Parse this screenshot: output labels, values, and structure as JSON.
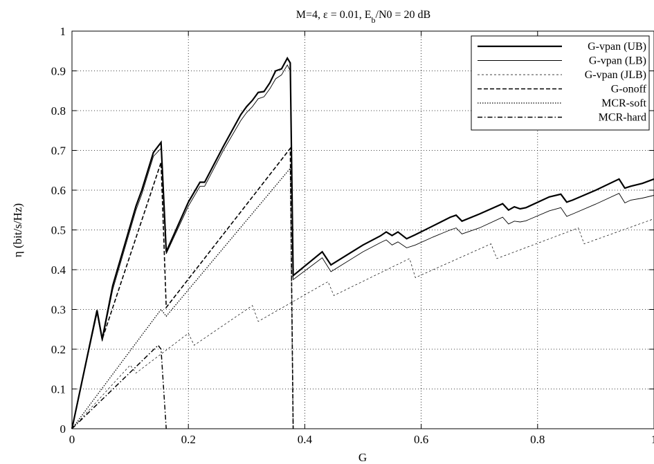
{
  "chart_data": {
    "type": "line",
    "title": "M=4, ε = 0.01, E",
    "title_sub": "b",
    "title_rest": "/N0 = 20 dB",
    "xlabel": "G",
    "ylabel": "η (bit/s/Hz)",
    "xlim": [
      0,
      1
    ],
    "ylim": [
      0,
      1
    ],
    "xticks": [
      0,
      0.2,
      0.4,
      0.6,
      0.8,
      1
    ],
    "xtick_labels": [
      "0",
      "0.2",
      "0.4",
      "0.6",
      "0.8",
      "1"
    ],
    "yticks": [
      0,
      0.1,
      0.2,
      0.3,
      0.4,
      0.5,
      0.6,
      0.7,
      0.8,
      0.9,
      1
    ],
    "ytick_labels": [
      "0",
      "0.1",
      "0.2",
      "0.3",
      "0.4",
      "0.5",
      "0.6",
      "0.7",
      "0.8",
      "0.9",
      "1"
    ],
    "grid": true,
    "legend_position": "top-right",
    "series": [
      {
        "name": "G-vpan (UB)",
        "style": "solid-thick",
        "x": [
          0,
          0.043,
          0.052,
          0.07,
          0.09,
          0.11,
          0.12,
          0.14,
          0.153,
          0.162,
          0.2,
          0.22,
          0.228,
          0.26,
          0.29,
          0.3,
          0.31,
          0.32,
          0.33,
          0.34,
          0.35,
          0.36,
          0.37,
          0.375,
          0.38,
          0.43,
          0.445,
          0.5,
          0.53,
          0.54,
          0.55,
          0.56,
          0.575,
          0.59,
          0.62,
          0.65,
          0.66,
          0.67,
          0.7,
          0.74,
          0.75,
          0.76,
          0.77,
          0.78,
          0.82,
          0.84,
          0.85,
          0.86,
          0.9,
          0.94,
          0.95,
          0.96,
          0.98,
          1.0
        ],
        "y": [
          0,
          0.298,
          0.225,
          0.36,
          0.46,
          0.56,
          0.6,
          0.695,
          0.72,
          0.445,
          0.57,
          0.62,
          0.62,
          0.71,
          0.79,
          0.81,
          0.826,
          0.846,
          0.848,
          0.87,
          0.9,
          0.905,
          0.932,
          0.92,
          0.385,
          0.445,
          0.412,
          0.462,
          0.485,
          0.495,
          0.486,
          0.495,
          0.478,
          0.488,
          0.51,
          0.532,
          0.537,
          0.522,
          0.54,
          0.566,
          0.55,
          0.558,
          0.553,
          0.556,
          0.583,
          0.59,
          0.57,
          0.575,
          0.6,
          0.628,
          0.605,
          0.61,
          0.617,
          0.628
        ]
      },
      {
        "name": "G-vpan (LB)",
        "style": "solid-thin",
        "x": [
          0,
          0.043,
          0.052,
          0.07,
          0.09,
          0.11,
          0.12,
          0.14,
          0.153,
          0.162,
          0.2,
          0.22,
          0.228,
          0.26,
          0.29,
          0.3,
          0.31,
          0.32,
          0.33,
          0.34,
          0.35,
          0.36,
          0.37,
          0.375,
          0.38,
          0.43,
          0.445,
          0.5,
          0.53,
          0.54,
          0.55,
          0.56,
          0.575,
          0.59,
          0.62,
          0.65,
          0.66,
          0.67,
          0.7,
          0.74,
          0.75,
          0.76,
          0.77,
          0.78,
          0.82,
          0.84,
          0.85,
          0.86,
          0.9,
          0.94,
          0.95,
          0.96,
          0.98,
          1.0
        ],
        "y": [
          0,
          0.29,
          0.22,
          0.35,
          0.45,
          0.55,
          0.59,
          0.685,
          0.705,
          0.44,
          0.56,
          0.61,
          0.61,
          0.7,
          0.775,
          0.795,
          0.81,
          0.83,
          0.835,
          0.855,
          0.88,
          0.89,
          0.915,
          0.9,
          0.375,
          0.43,
          0.395,
          0.445,
          0.468,
          0.475,
          0.462,
          0.47,
          0.455,
          0.462,
          0.482,
          0.5,
          0.505,
          0.49,
          0.505,
          0.532,
          0.515,
          0.522,
          0.52,
          0.523,
          0.548,
          0.556,
          0.534,
          0.54,
          0.565,
          0.592,
          0.568,
          0.575,
          0.58,
          0.587
        ]
      },
      {
        "name": "G-vpan (JLB)",
        "style": "thin-dashed",
        "x": [
          0,
          0.1,
          0.11,
          0.2,
          0.21,
          0.31,
          0.32,
          0.44,
          0.45,
          0.58,
          0.59,
          0.72,
          0.73,
          0.87,
          0.88,
          1.0
        ],
        "y": [
          0,
          0.16,
          0.14,
          0.24,
          0.21,
          0.31,
          0.27,
          0.37,
          0.335,
          0.428,
          0.38,
          0.465,
          0.428,
          0.505,
          0.465,
          0.528
        ]
      },
      {
        "name": "G-onoff",
        "style": "dashed",
        "x": [
          0,
          0.043,
          0.052,
          0.153,
          0.162,
          0.375,
          0.38
        ],
        "y": [
          0,
          0.295,
          0.225,
          0.67,
          0.305,
          0.705,
          0
        ]
      },
      {
        "name": "MCR-soft",
        "style": "dotted",
        "x": [
          0,
          0.153,
          0.162,
          0.375,
          0.38
        ],
        "y": [
          0,
          0.3,
          0.283,
          0.655,
          0
        ]
      },
      {
        "name": "MCR-hard",
        "style": "dash-dot",
        "x": [
          0,
          0.148,
          0.153,
          0.162
        ],
        "y": [
          0,
          0.21,
          0.2,
          0
        ]
      }
    ]
  }
}
